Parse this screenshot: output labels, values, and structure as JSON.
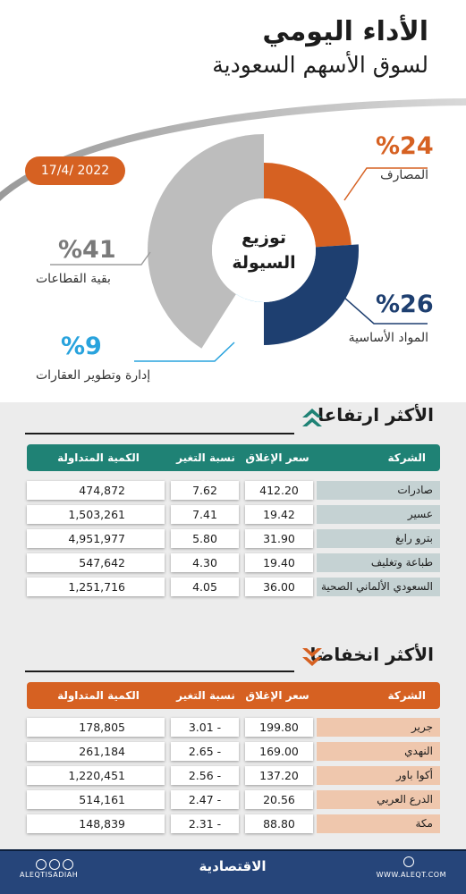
{
  "header": {
    "title_line1": "الأداء اليومي",
    "title_line2": "لسوق الأسهم السعودية",
    "date": "17/4/ 2022"
  },
  "colors": {
    "orange": "#d66122",
    "navy": "#1e3f70",
    "sky": "#29a3dd",
    "gray": "#bdbdbd",
    "teal": "#1f8275",
    "footer": "#26457a"
  },
  "chart_data": {
    "type": "pie",
    "title": "توزيع السيولة",
    "title_line1": "توزيع",
    "title_line2": "السيولة",
    "slices": [
      {
        "label": "المصارف",
        "value": 24,
        "pct_label": "%24",
        "color": "#d66122"
      },
      {
        "label": "المواد الأساسية",
        "value": 26,
        "pct_label": "%26",
        "color": "#1e3f70"
      },
      {
        "label": "إدارة وتطوير العقارات",
        "value": 9,
        "pct_label": "%9",
        "color": "#29a3dd"
      },
      {
        "label": "بقية القطاعات",
        "value": 41,
        "pct_label": "%41",
        "color": "#bdbdbd"
      }
    ]
  },
  "gainers": {
    "title": "الأكثر ارتفاعا",
    "headers": {
      "company": "الشركة",
      "close": "سعر الإغلاق",
      "change": "نسبة التغير %",
      "volume": "الكمية المتداولة"
    },
    "rows": [
      {
        "company": "صادرات",
        "close": "412.20",
        "change": "7.62",
        "volume": "474,872"
      },
      {
        "company": "عسير",
        "close": "19.42",
        "change": "7.41",
        "volume": "1,503,261"
      },
      {
        "company": "بترو رابغ",
        "close": "31.90",
        "change": "5.80",
        "volume": "4,951,977"
      },
      {
        "company": "طباعة وتغليف",
        "close": "19.40",
        "change": "4.30",
        "volume": "547,642"
      },
      {
        "company": "السعودي الألماني الصحية",
        "close": "36.00",
        "change": "4.05",
        "volume": "1,251,716"
      }
    ]
  },
  "losers": {
    "title": "الأكثر انخفاضا",
    "headers": {
      "company": "الشركة",
      "close": "سعر الإغلاق",
      "change": "نسبة التغير %",
      "volume": "الكمية المتداولة"
    },
    "rows": [
      {
        "company": "جرير",
        "close": "199.80",
        "change": "3.01 -",
        "volume": "178,805"
      },
      {
        "company": "النهدي",
        "close": "169.00",
        "change": "2.65 -",
        "volume": "261,184"
      },
      {
        "company": "أكوا باور",
        "close": "137.20",
        "change": "2.56 -",
        "volume": "1,220,451"
      },
      {
        "company": "الدرع العربي",
        "close": "20.56",
        "change": "2.47 -",
        "volume": "514,161"
      },
      {
        "company": "مكة",
        "close": "88.80",
        "change": "2.31 -",
        "volume": "148,839"
      }
    ]
  },
  "footer": {
    "handle": "ALEQTISADIAH",
    "logo": "الاقتصادية",
    "site": "WWW.ALEQT.COM"
  }
}
